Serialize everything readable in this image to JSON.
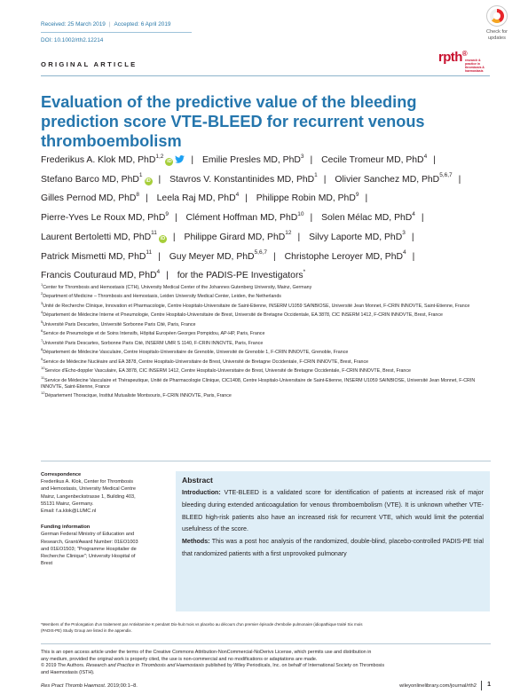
{
  "header": {
    "received": "Received: 25 March 2019",
    "accepted": "Accepted: 6 April 2019",
    "doi": "DOI: 10.1002/rth2.12214",
    "check_updates": [
      "Check for",
      "updates"
    ]
  },
  "article_type": "ORIGINAL ARTICLE",
  "logo": {
    "mark": "rpth",
    "sub": "research & practice in thrombosis & haemostasis"
  },
  "title": "Evaluation of the predictive value of the bleeding prediction score VTE-BLEED for recurrent venous thromboembolism",
  "authors": [
    {
      "name": "Frederikus A. Klok MD, PhD",
      "sup": "1,2",
      "orcid": true,
      "twitter": true
    },
    {
      "name": "Emilie Presles MD, PhD",
      "sup": "3"
    },
    {
      "name": "Cecile Tromeur MD, PhD",
      "sup": "4"
    },
    {
      "name": "Stefano Barco MD, PhD",
      "sup": "1",
      "orcid": true
    },
    {
      "name": "Stavros V. Konstantinides MD, PhD",
      "sup": "1"
    },
    {
      "name": "Olivier Sanchez MD, PhD",
      "sup": "5,6,7"
    },
    {
      "name": "Gilles Pernod MD, PhD",
      "sup": "8"
    },
    {
      "name": "Leela Raj MD, PhD",
      "sup": "4"
    },
    {
      "name": "Philippe Robin MD, PhD",
      "sup": "9"
    },
    {
      "name": "Pierre-Yves Le Roux MD, PhD",
      "sup": "9"
    },
    {
      "name": "Clément Hoffman MD, PhD",
      "sup": "10"
    },
    {
      "name": "Solen Mélac MD, PhD",
      "sup": "4"
    },
    {
      "name": "Laurent Bertoletti MD, PhD",
      "sup": "11",
      "orcid": true
    },
    {
      "name": "Philippe Girard MD, PhD",
      "sup": "12"
    },
    {
      "name": "Silvy Laporte MD, PhD",
      "sup": "3"
    },
    {
      "name": "Patrick Mismetti MD, PhD",
      "sup": "11"
    },
    {
      "name": "Guy Meyer MD, PhD",
      "sup": "5,6,7"
    },
    {
      "name": "Christophe Leroyer MD, PhD",
      "sup": "4"
    },
    {
      "name": "Francis Couturaud MD, PhD",
      "sup": "4"
    },
    {
      "name": "for the PADIS-PE Investigators",
      "sup": "*"
    }
  ],
  "affiliations": [
    {
      "num": "1",
      "text": "Center for Thrombosis and Hemostasis (CTH), University Medical Center of the Johannes Gutenberg University, Mainz, Germany"
    },
    {
      "num": "2",
      "text": "Department of Medicine – Thrombosis and Hemostasis, Leiden University Medical Center, Leiden, the Netherlands"
    },
    {
      "num": "3",
      "text": "Unité de Recherche Clinique, Innovation et Pharmacologie, Centre Hospitalo-Universitaire de Saint-Etienne, INSERM U1059 SAINBIOSE, Université Jean Monnet, F-CRIN INNOVTE, Saint-Etienne, France"
    },
    {
      "num": "4",
      "text": "Département de Médecine Interne et Pneumologie, Centre Hospitalo-Universitaire de Brest, Université de Bretagne Occidentale, EA 3878, CIC INSERM 1412, F-CRIN INNOVTE, Brest, France"
    },
    {
      "num": "5",
      "text": "Université Paris Descartes, Université Sorbonne Paris Cité, Paris, France"
    },
    {
      "num": "6",
      "text": "Service de Pneumologie et de Soins Intensifs, Hôpital Européen Georges Pompidou, AP-HP, Paris, France"
    },
    {
      "num": "7",
      "text": "Université Paris Descartes, Sorbonne Paris Cité, INSERM UMR S 1140, F-CRIN INNOVTE, Paris, France"
    },
    {
      "num": "8",
      "text": "Département de Médecine Vasculaire, Centre Hospitalo-Universitaire de Grenoble, Université de Grenoble 1, F-CRIN INNOVTE, Grenoble, France"
    },
    {
      "num": "9",
      "text": "Service de Médecine Nucléaire and EA 3878, Centre Hospitalo-Universitaire de Brest, Université de Bretagne Occidentale, F-CRIN INNOVTE, Brest, France"
    },
    {
      "num": "10",
      "text": "Service d'Echo-doppler Vasculaire, EA 3878, CIC INSERM 1412, Centre Hospitalo-Universitaire de Brest, Université de Bretagne Occidentale, F-CRIN INNOVTE, Brest, France"
    },
    {
      "num": "11",
      "text": "Service de Médecine Vasculaire et Thérapeutique, Unité de Pharmacologie Clinique, CIC1408, Centre Hospitalo-Universitaire de Saint-Etienne, INSERM U1059 SAINBIOSE, Université Jean Monnet, F-CRIN INNOVTE, Saint-Etienne, France"
    },
    {
      "num": "12",
      "text": "Département Thoracique, Institut Mutualiste Montsouris, F-CRIN INNOVTE, Paris, France"
    }
  ],
  "correspondence": {
    "label": "Correspondence",
    "lines": [
      "Frederikus A. Klok, Center for Thrombosis",
      "and Hemostasis, University Medical Centre",
      "Mainz, Langenbeckstrasse 1, Building 403,",
      "55131 Mainz, Germany.",
      "Email: f.a.klok@LUMC.nl"
    ]
  },
  "funding": {
    "label": "Funding information",
    "lines": [
      "German Federal Ministry of Education and",
      "Research, Grant/Award Number: 01EO1003",
      "and 01EO1503; \"Programme Hospitalier de",
      "Recherche Clinique\"; University Hospital of",
      "Brest"
    ]
  },
  "abstract": {
    "heading": "Abstract",
    "intro_label": "Introduction:",
    "intro": "VTE-BLEED is a validated score for identification of patients at increased risk of major bleeding during extended anticoagulation for venous thromboembolism (VTE). It is unknown whether VTE-BLEED high-risk patients also have an increased risk for recurrent VTE, which would limit the potential usefulness of the score.",
    "methods_label": "Methods:",
    "methods": "This was a post hoc analysis of the randomized, double-blind, placebo-controlled PADIS-PE trial that randomized patients with a first unprovoked pulmonary"
  },
  "footnote": [
    "*Members of the Prolongation d'un traitement par Antivitamine K pendant Dix-huit mois vs placebo au décours d'un premier épisode d'embolie pulmonaire (idiopathique traité Six mois",
    "(PADIS-PE) Study Group are listed in the appendix."
  ],
  "license": {
    "line1": "This is an open access article under the terms of the Creative Commons Attribution-NonCommercial-NoDerivs License, which permits use and distribution in",
    "line2": "any medium, provided the original work is properly cited, the use is non-commercial and no modifications or adaptations are made.",
    "line3_a": "© 2019 The Authors. ",
    "line3_b": "Research and Practice in Thrombosis and Haemostasis",
    "line3_c": " published by Wiley Periodicals, Inc. on behalf of International Society on Thrombosis",
    "line4": "and Haemostasis (ISTH)."
  },
  "footer": {
    "journal": "Res Pract Thromb Haemost.",
    "citation": " 2019;00:1–8.",
    "site": "wileyonlinelibrary.com/journal/rth2",
    "page": "1"
  }
}
